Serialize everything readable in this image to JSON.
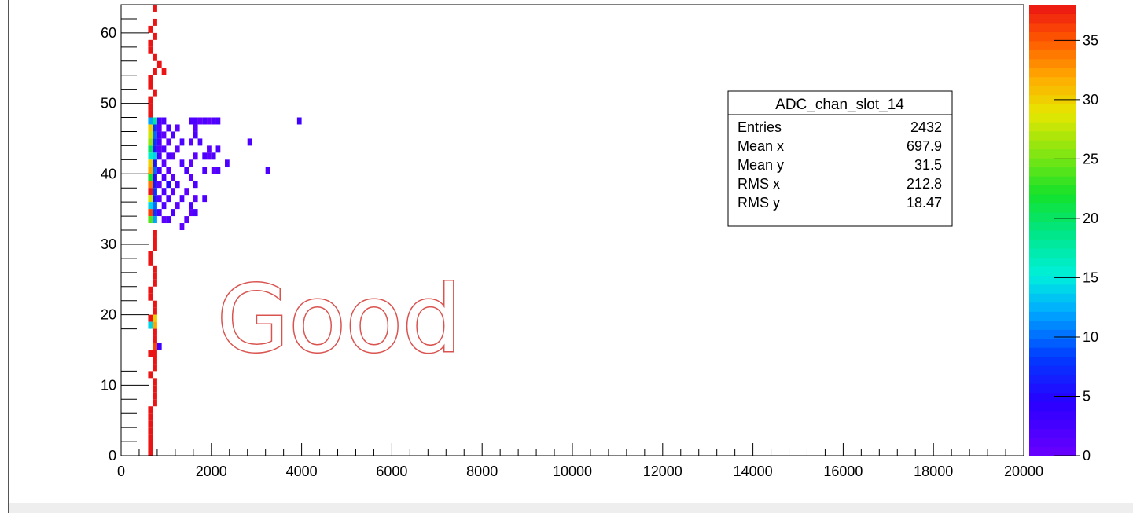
{
  "chart_data": {
    "type": "heatmap",
    "xlim": [
      0,
      20000
    ],
    "ylim": [
      0,
      64
    ],
    "x_ticks": [
      "0",
      "2000",
      "4000",
      "6000",
      "8000",
      "10000",
      "12000",
      "14000",
      "16000",
      "18000",
      "20000"
    ],
    "y_ticks": [
      "0",
      "10",
      "20",
      "30",
      "40",
      "50",
      "60"
    ],
    "colorbar": {
      "range": [
        0,
        38
      ],
      "ticks": [
        "0",
        "5",
        "10",
        "15",
        "20",
        "25",
        "30",
        "35"
      ],
      "palette": "rainbow"
    },
    "cells": [
      [
        700,
        63,
        38
      ],
      [
        700,
        61,
        38
      ],
      [
        600,
        60,
        38
      ],
      [
        700,
        59,
        38
      ],
      [
        600,
        58,
        38
      ],
      [
        600,
        57,
        38
      ],
      [
        700,
        56,
        38
      ],
      [
        800,
        55,
        38
      ],
      [
        900,
        54,
        38
      ],
      [
        700,
        54,
        38
      ],
      [
        600,
        53,
        38
      ],
      [
        600,
        52,
        38
      ],
      [
        700,
        51,
        38
      ],
      [
        600,
        50,
        38
      ],
      [
        600,
        49,
        38
      ],
      [
        600,
        48,
        38
      ],
      [
        600,
        47,
        12
      ],
      [
        700,
        47,
        18
      ],
      [
        600,
        46,
        30
      ],
      [
        700,
        46,
        8
      ],
      [
        600,
        45,
        28
      ],
      [
        700,
        45,
        10
      ],
      [
        600,
        44,
        26
      ],
      [
        700,
        44,
        8
      ],
      [
        600,
        43,
        20
      ],
      [
        700,
        43,
        6
      ],
      [
        600,
        42,
        16
      ],
      [
        700,
        42,
        14
      ],
      [
        600,
        41,
        30
      ],
      [
        700,
        41,
        6
      ],
      [
        600,
        40,
        32
      ],
      [
        700,
        40,
        10
      ],
      [
        600,
        39,
        22
      ],
      [
        700,
        39,
        4
      ],
      [
        600,
        38,
        34
      ],
      [
        700,
        38,
        6
      ],
      [
        600,
        37,
        38
      ],
      [
        700,
        37,
        8
      ],
      [
        600,
        36,
        28
      ],
      [
        700,
        36,
        6
      ],
      [
        600,
        35,
        14
      ],
      [
        700,
        35,
        10
      ],
      [
        600,
        34,
        36
      ],
      [
        700,
        34,
        8
      ],
      [
        600,
        33,
        24
      ],
      [
        700,
        33,
        12
      ],
      [
        800,
        47,
        2
      ],
      [
        900,
        47,
        2
      ],
      [
        800,
        46,
        1
      ],
      [
        1000,
        46,
        2
      ],
      [
        1200,
        46,
        1
      ],
      [
        800,
        45,
        2
      ],
      [
        900,
        45,
        1
      ],
      [
        1100,
        45,
        2
      ],
      [
        800,
        44,
        2
      ],
      [
        1000,
        44,
        1
      ],
      [
        1300,
        44,
        2
      ],
      [
        800,
        43,
        1
      ],
      [
        900,
        43,
        2
      ],
      [
        1200,
        43,
        1
      ],
      [
        800,
        42,
        2
      ],
      [
        1000,
        42,
        2
      ],
      [
        1100,
        42,
        1
      ],
      [
        900,
        41,
        1
      ],
      [
        1300,
        41,
        2
      ],
      [
        1500,
        41,
        1
      ],
      [
        800,
        40,
        2
      ],
      [
        1000,
        40,
        1
      ],
      [
        1400,
        40,
        2
      ],
      [
        900,
        39,
        2
      ],
      [
        1100,
        39,
        1
      ],
      [
        800,
        38,
        1
      ],
      [
        1000,
        38,
        5
      ],
      [
        1200,
        38,
        2
      ],
      [
        900,
        37,
        2
      ],
      [
        1100,
        37,
        1
      ],
      [
        800,
        36,
        1
      ],
      [
        1000,
        36,
        2
      ],
      [
        1300,
        36,
        2
      ],
      [
        900,
        35,
        2
      ],
      [
        1200,
        35,
        1
      ],
      [
        800,
        34,
        2
      ],
      [
        1100,
        34,
        2
      ],
      [
        900,
        33,
        1
      ],
      [
        1000,
        33,
        2
      ],
      [
        1300,
        32,
        1
      ],
      [
        1500,
        47,
        2
      ],
      [
        1600,
        47,
        2
      ],
      [
        1700,
        47,
        1
      ],
      [
        1800,
        47,
        2
      ],
      [
        1900,
        47,
        1
      ],
      [
        2000,
        47,
        2
      ],
      [
        2100,
        47,
        2
      ],
      [
        1600,
        46,
        1
      ],
      [
        1600,
        45,
        2
      ],
      [
        1500,
        44,
        1
      ],
      [
        1700,
        44,
        2
      ],
      [
        1900,
        43,
        1
      ],
      [
        2100,
        43,
        2
      ],
      [
        1600,
        42,
        1
      ],
      [
        1800,
        42,
        2
      ],
      [
        1900,
        42,
        1
      ],
      [
        2000,
        42,
        2
      ],
      [
        2300,
        41,
        2
      ],
      [
        1800,
        40,
        2
      ],
      [
        2000,
        40,
        1
      ],
      [
        2100,
        40,
        2
      ],
      [
        1500,
        39,
        1
      ],
      [
        1600,
        38,
        2
      ],
      [
        1400,
        37,
        1
      ],
      [
        1600,
        36,
        1
      ],
      [
        1800,
        36,
        2
      ],
      [
        1500,
        35,
        2
      ],
      [
        1500,
        34,
        1
      ],
      [
        1600,
        34,
        2
      ],
      [
        1400,
        33,
        1
      ],
      [
        2800,
        44,
        2
      ],
      [
        3200,
        40,
        2
      ],
      [
        3900,
        47,
        3
      ],
      [
        700,
        31,
        38
      ],
      [
        700,
        30,
        38
      ],
      [
        700,
        29,
        38
      ],
      [
        600,
        28,
        38
      ],
      [
        600,
        27,
        38
      ],
      [
        700,
        26,
        38
      ],
      [
        700,
        25,
        38
      ],
      [
        700,
        24,
        38
      ],
      [
        600,
        23,
        38
      ],
      [
        600,
        22,
        38
      ],
      [
        700,
        21,
        38
      ],
      [
        700,
        20,
        38
      ],
      [
        600,
        19,
        38
      ],
      [
        700,
        19,
        30
      ],
      [
        600,
        18,
        14
      ],
      [
        700,
        18,
        32
      ],
      [
        700,
        17,
        38
      ],
      [
        700,
        16,
        38
      ],
      [
        700,
        15,
        36
      ],
      [
        800,
        15,
        3
      ],
      [
        600,
        14,
        38
      ],
      [
        700,
        14,
        38
      ],
      [
        700,
        13,
        38
      ],
      [
        700,
        12,
        38
      ],
      [
        600,
        11,
        38
      ],
      [
        700,
        10,
        38
      ],
      [
        700,
        9,
        38
      ],
      [
        700,
        8,
        38
      ],
      [
        700,
        7,
        38
      ],
      [
        600,
        6,
        38
      ],
      [
        600,
        5,
        38
      ],
      [
        600,
        4,
        38
      ],
      [
        600,
        3,
        38
      ],
      [
        600,
        2,
        38
      ],
      [
        600,
        1,
        38
      ],
      [
        600,
        0,
        38
      ]
    ]
  },
  "stats": {
    "title": "ADC_chan_slot_14",
    "rows": [
      {
        "label": "Entries",
        "value": "2432"
      },
      {
        "label": "Mean x",
        "value": "697.9"
      },
      {
        "label": "Mean y",
        "value": "31.5"
      },
      {
        "label": "RMS x",
        "value": "212.8"
      },
      {
        "label": "RMS y",
        "value": "18.47"
      }
    ]
  },
  "overlay": {
    "text": "Good",
    "color": "#d9534f"
  }
}
